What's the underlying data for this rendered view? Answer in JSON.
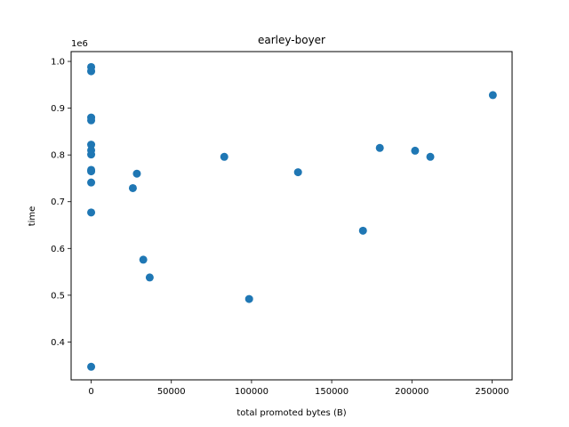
{
  "chart_data": {
    "type": "scatter",
    "title": "earley-boyer",
    "xlabel": "total promoted bytes (B)",
    "ylabel": "time",
    "y_offset_label": "1e6",
    "y_multiplier": 1000000,
    "xlim": [
      -12500,
      262500
    ],
    "ylim": [
      319000,
      1021000
    ],
    "x_ticks": [
      0,
      50000,
      100000,
      150000,
      200000,
      250000
    ],
    "x_tick_labels": [
      "0",
      "50000",
      "100000",
      "150000",
      "200000",
      "250000"
    ],
    "y_ticks": [
      400000,
      500000,
      600000,
      700000,
      800000,
      900000,
      1000000
    ],
    "y_tick_labels": [
      "0.4",
      "0.5",
      "0.6",
      "0.7",
      "0.8",
      "0.9",
      "1.0"
    ],
    "grid": false,
    "marker_color": "#1f77b4",
    "points": [
      {
        "x": 0,
        "y": 988000
      },
      {
        "x": 0,
        "y": 979000
      },
      {
        "x": 0,
        "y": 880000
      },
      {
        "x": 0,
        "y": 874000
      },
      {
        "x": 0,
        "y": 822000
      },
      {
        "x": 0,
        "y": 810000
      },
      {
        "x": 0,
        "y": 801000
      },
      {
        "x": 0,
        "y": 768000
      },
      {
        "x": 0,
        "y": 765000
      },
      {
        "x": 0,
        "y": 741000
      },
      {
        "x": 0,
        "y": 677000
      },
      {
        "x": 0,
        "y": 347000
      },
      {
        "x": 26000,
        "y": 729000
      },
      {
        "x": 28500,
        "y": 760000
      },
      {
        "x": 32500,
        "y": 576000
      },
      {
        "x": 36500,
        "y": 538000
      },
      {
        "x": 83000,
        "y": 796000
      },
      {
        "x": 98500,
        "y": 492000
      },
      {
        "x": 129000,
        "y": 763000
      },
      {
        "x": 169500,
        "y": 638000
      },
      {
        "x": 180000,
        "y": 815000
      },
      {
        "x": 202000,
        "y": 809000
      },
      {
        "x": 211500,
        "y": 796000
      },
      {
        "x": 250500,
        "y": 928000
      }
    ]
  }
}
